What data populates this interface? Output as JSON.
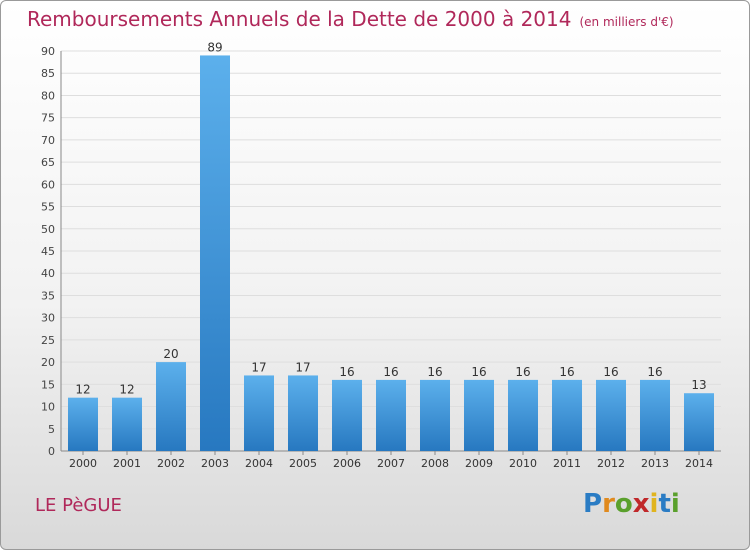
{
  "header": {
    "title": "Remboursements Annuels de la Dette de 2000 à 2014",
    "unit": "(en milliers d'€)"
  },
  "footer": {
    "commune": "LE PèGUE",
    "logo": "Proxiti"
  },
  "colors": {
    "title": "#b0285a",
    "bar_light": "#5aaeea",
    "bar_dark": "#2a7cc4",
    "grid": "#dddddd"
  },
  "chart_data": {
    "type": "bar",
    "title": "Remboursements Annuels de la Dette de 2000 à 2014",
    "xlabel": "",
    "ylabel": "",
    "categories": [
      "2000",
      "2001",
      "2002",
      "2003",
      "2004",
      "2005",
      "2006",
      "2007",
      "2008",
      "2009",
      "2010",
      "2011",
      "2012",
      "2013",
      "2014"
    ],
    "values": [
      12,
      12,
      20,
      89,
      17,
      17,
      16,
      16,
      16,
      16,
      16,
      16,
      16,
      16,
      13
    ],
    "ylim": [
      0,
      90
    ],
    "yticks": [
      0,
      5,
      10,
      15,
      20,
      25,
      30,
      35,
      40,
      45,
      50,
      55,
      60,
      65,
      70,
      75,
      80,
      85,
      90
    ],
    "grid": true,
    "data_labels": true
  }
}
